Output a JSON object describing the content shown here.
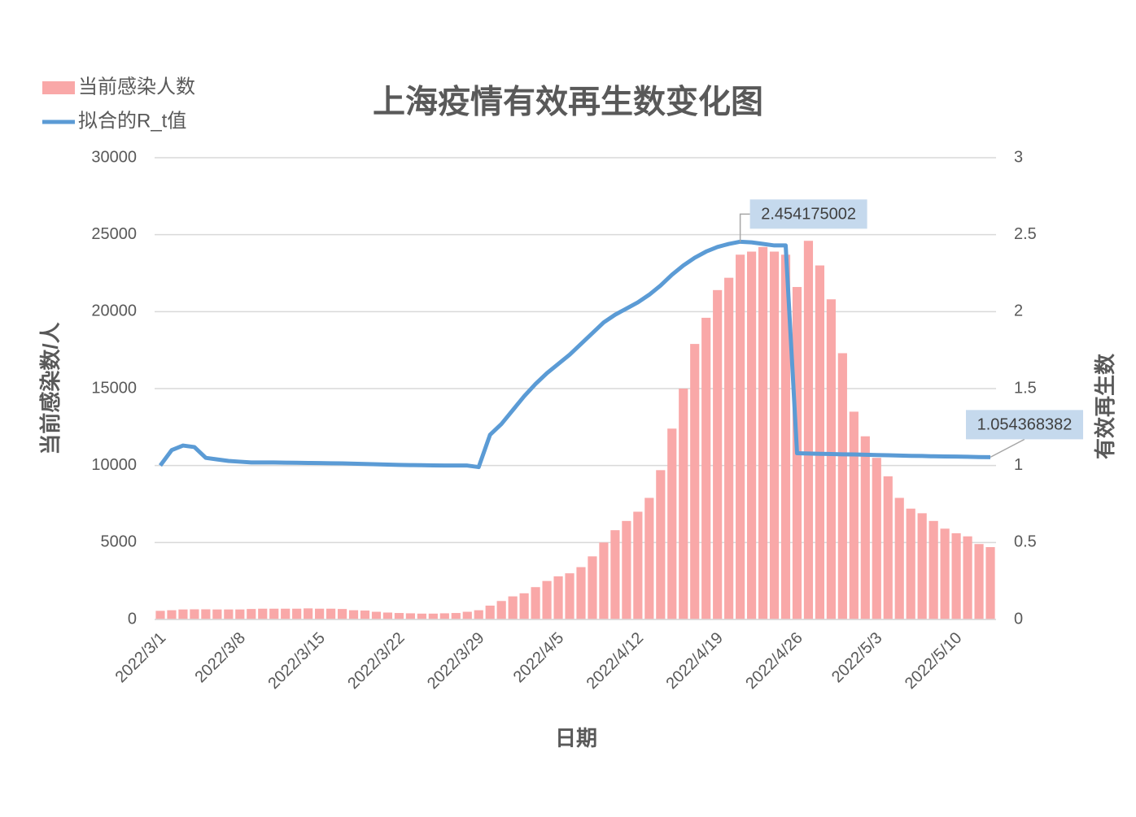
{
  "chart_data": {
    "type": "bar-line",
    "title": "上海疫情有效再生数变化图",
    "x_label": "日期",
    "y_label": "当前感染数/人",
    "y2_label": "有效再生数",
    "categories": [
      "2022/3/1",
      null,
      null,
      null,
      null,
      null,
      null,
      "2022/3/8",
      null,
      null,
      null,
      null,
      null,
      null,
      "2022/3/15",
      null,
      null,
      null,
      null,
      null,
      null,
      "2022/3/22",
      null,
      null,
      null,
      null,
      null,
      null,
      "2022/3/29",
      null,
      null,
      null,
      null,
      null,
      null,
      "2022/4/5",
      null,
      null,
      null,
      null,
      null,
      null,
      "2022/4/12",
      null,
      null,
      null,
      null,
      null,
      null,
      "2022/4/19",
      null,
      null,
      null,
      null,
      null,
      null,
      "2022/4/26",
      null,
      null,
      null,
      null,
      null,
      null,
      "2022/5/3",
      null,
      null,
      null,
      null,
      null,
      null,
      "2022/5/10",
      null,
      null,
      null
    ],
    "series": [
      {
        "name": "当前感染人数",
        "type": "bar",
        "color": "#f9a8a8",
        "values": [
          560,
          600,
          650,
          660,
          660,
          650,
          650,
          650,
          680,
          700,
          700,
          700,
          700,
          720,
          700,
          700,
          680,
          600,
          580,
          500,
          450,
          420,
          400,
          380,
          380,
          400,
          420,
          500,
          600,
          900,
          1200,
          1500,
          1700,
          2100,
          2500,
          2800,
          3000,
          3400,
          4100,
          5000,
          5800,
          6400,
          7000,
          7900,
          9700,
          12400,
          15000,
          17900,
          19600,
          21400,
          22200,
          23700,
          23900,
          24200,
          23900,
          23700,
          21600,
          24600,
          23000,
          20800,
          17300,
          13500,
          11900,
          10500,
          9300,
          7900,
          7200,
          6900,
          6400,
          5900,
          5600,
          5400,
          4900,
          4700
        ]
      },
      {
        "name": "拟合的R_t值",
        "type": "line",
        "axis": "y2",
        "color": "#5b9bd5",
        "values": [
          1.0,
          1.1,
          1.13,
          1.12,
          1.05,
          1.04,
          1.03,
          1.025,
          1.02,
          1.02,
          1.02,
          1.019,
          1.018,
          1.017,
          1.016,
          1.015,
          1.014,
          1.012,
          1.01,
          1.008,
          1.006,
          1.004,
          1.003,
          1.002,
          1.001,
          1.0,
          1.0,
          1.0,
          0.99,
          1.2,
          1.27,
          1.36,
          1.45,
          1.53,
          1.6,
          1.66,
          1.72,
          1.79,
          1.86,
          1.93,
          1.98,
          2.02,
          2.06,
          2.11,
          2.17,
          2.24,
          2.3,
          2.35,
          2.39,
          2.42,
          2.44,
          2.454175002,
          2.45,
          2.44,
          2.43,
          2.43,
          1.08,
          1.078,
          1.076,
          1.075,
          1.073,
          1.072,
          1.07,
          1.068,
          1.067,
          1.065,
          1.063,
          1.062,
          1.06,
          1.059,
          1.058,
          1.057,
          1.055,
          1.054368382
        ],
        "label_indices": [
          51,
          73
        ]
      }
    ],
    "ylim": [
      0,
      30000
    ],
    "yticks": [
      0,
      5000,
      10000,
      15000,
      20000,
      25000,
      30000
    ],
    "y2lim": [
      0,
      3
    ],
    "y2ticks": [
      0,
      0.5,
      1,
      1.5,
      2,
      2.5,
      3
    ],
    "grid": true,
    "legend": "top-left"
  }
}
